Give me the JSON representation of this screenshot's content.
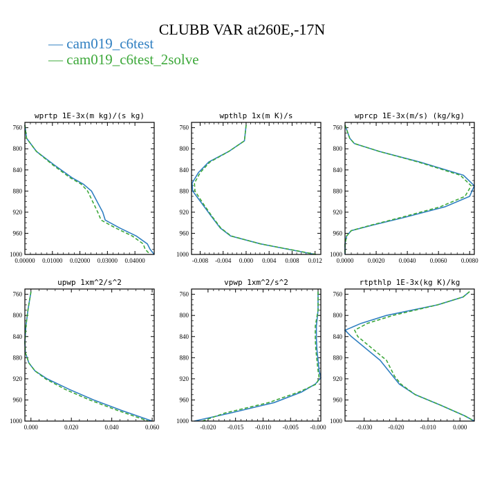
{
  "header": {
    "title": "CLUBB VAR at260E,-17N",
    "legend": [
      {
        "label": "cam019_c6test",
        "color": "#2f7fc1",
        "dash": "solid"
      },
      {
        "label": "cam019_c6test_2solve",
        "color": "#3da83a",
        "dash": "dashed"
      }
    ]
  },
  "chart_data": [
    {
      "type": "line",
      "title": "wprtp  1E-3x(m kg)/(s kg)",
      "xlim": [
        0,
        0.047
      ],
      "ylim": [
        1000,
        750
      ],
      "xticks": [
        0,
        0.01,
        0.02,
        0.03,
        0.04
      ],
      "xtick_labels": [
        "0.00000",
        "0.01000",
        "0.02000",
        "0.03000",
        "0.04000"
      ],
      "ytick_labels": [
        "760",
        "800",
        "840",
        "880",
        "920",
        "960",
        "1000"
      ],
      "y": [
        755,
        780,
        805,
        830,
        855,
        867,
        880,
        920,
        935,
        950,
        965,
        980,
        990,
        1000
      ],
      "series": [
        {
          "name": "cam019_c6test",
          "values": [
            0.0,
            0.0006,
            0.0042,
            0.0105,
            0.0172,
            0.0213,
            0.0242,
            0.0283,
            0.0292,
            0.0345,
            0.0405,
            0.0445,
            0.0455,
            0.047
          ]
        },
        {
          "name": "cam019_c6test_2solve",
          "values": [
            0.0,
            0.0006,
            0.0042,
            0.01,
            0.0165,
            0.0205,
            0.0228,
            0.0265,
            0.0277,
            0.033,
            0.039,
            0.043,
            0.0437,
            0.0455
          ]
        }
      ]
    },
    {
      "type": "line",
      "title": "wpthlp  1x(m K)/s",
      "xlim": [
        -0.0095,
        0.013
      ],
      "ylim": [
        1000,
        750
      ],
      "xticks": [
        -0.008,
        -0.004,
        0,
        0.004,
        0.008,
        0.012
      ],
      "xtick_labels": [
        "-0.008",
        "-0.004",
        "0.000",
        "0.004",
        "0.008",
        "0.012"
      ],
      "ytick_labels": [
        "760",
        "800",
        "840",
        "880",
        "920",
        "960",
        "1000"
      ],
      "y": [
        755,
        785,
        805,
        825,
        845,
        865,
        880,
        905,
        930,
        950,
        965,
        980,
        1000
      ],
      "series": [
        {
          "name": "cam019_c6test",
          "values": [
            0.0,
            -0.0003,
            -0.003,
            -0.0065,
            -0.0083,
            -0.0094,
            -0.0093,
            -0.0076,
            -0.0059,
            -0.0045,
            -0.0027,
            0.0025,
            0.012
          ]
        },
        {
          "name": "cam019_c6test_2solve",
          "values": [
            0.0,
            -0.0003,
            -0.003,
            -0.0063,
            -0.008,
            -0.009,
            -0.0089,
            -0.0074,
            -0.0058,
            -0.0044,
            -0.0026,
            0.0025,
            0.0122
          ]
        }
      ]
    },
    {
      "type": "line",
      "title": "wprcp  1E-3x(m/s) (kg/kg)",
      "xlim": [
        0,
        0.0083
      ],
      "ylim": [
        1000,
        750
      ],
      "xticks": [
        0,
        0.002,
        0.004,
        0.006,
        0.008
      ],
      "xtick_labels": [
        "0.0000",
        "0.0020",
        "0.0040",
        "0.0060",
        "0.0080"
      ],
      "ytick_labels": [
        "760",
        "800",
        "840",
        "880",
        "920",
        "960",
        "1000"
      ],
      "y": [
        755,
        780,
        790,
        805,
        825,
        850,
        870,
        890,
        910,
        930,
        945,
        955,
        965,
        980,
        1000
      ],
      "series": [
        {
          "name": "cam019_c6test",
          "values": [
            0.0,
            0.0003,
            0.0006,
            0.0022,
            0.0048,
            0.0076,
            0.0083,
            0.008,
            0.0064,
            0.0038,
            0.0017,
            0.0004,
            0.0001,
            0.0,
            0.0
          ]
        },
        {
          "name": "cam019_c6test_2solve",
          "values": [
            0.0,
            0.0003,
            0.0006,
            0.0022,
            0.0047,
            0.0074,
            0.0081,
            0.0077,
            0.0061,
            0.0036,
            0.0016,
            0.0004,
            0.0001,
            0.0,
            0.0
          ]
        }
      ]
    },
    {
      "type": "line",
      "title": "upwp  1xm^2/s^2",
      "xlim": [
        -0.003,
        0.061
      ],
      "ylim": [
        1000,
        750
      ],
      "xticks": [
        0,
        0.02,
        0.04,
        0.06
      ],
      "xtick_labels": [
        "0.000",
        "0.020",
        "0.040",
        "0.060"
      ],
      "ytick_labels": [
        "760",
        "800",
        "840",
        "880",
        "920",
        "960",
        "1000"
      ],
      "y": [
        755,
        790,
        820,
        850,
        870,
        890,
        905,
        920,
        940,
        960,
        980,
        1000
      ],
      "series": [
        {
          "name": "cam019_c6test",
          "values": [
            0.0,
            -0.0015,
            -0.0025,
            -0.003,
            -0.0028,
            -0.001,
            0.002,
            0.008,
            0.019,
            0.031,
            0.045,
            0.06
          ]
        },
        {
          "name": "cam019_c6test_2solve",
          "values": [
            0.0,
            -0.0015,
            -0.0025,
            -0.003,
            -0.0028,
            -0.001,
            0.002,
            0.0072,
            0.017,
            0.029,
            0.043,
            0.058
          ]
        }
      ]
    },
    {
      "type": "line",
      "title": "vpwp  1xm^2/s^2",
      "xlim": [
        -0.023,
        0.0005
      ],
      "ylim": [
        1000,
        750
      ],
      "xticks": [
        -0.02,
        -0.015,
        -0.01,
        -0.005,
        0
      ],
      "xtick_labels": [
        "-0.020",
        "-0.015",
        "-0.010",
        "-0.005",
        "-0.000"
      ],
      "ytick_labels": [
        "760",
        "800",
        "840",
        "880",
        "920",
        "960",
        "1000"
      ],
      "y": [
        755,
        790,
        820,
        845,
        865,
        885,
        905,
        918,
        930,
        945,
        965,
        985,
        1000
      ],
      "series": [
        {
          "name": "cam019_c6test",
          "values": [
            0.0,
            0.0,
            -0.0003,
            -0.0003,
            -0.0002,
            -0.0,
            0.0002,
            0.0005,
            -0.0005,
            -0.003,
            -0.008,
            -0.016,
            -0.0225
          ]
        },
        {
          "name": "cam019_c6test_2solve",
          "values": [
            0.0,
            0.0,
            -0.0005,
            -0.0005,
            -0.0004,
            -0.0002,
            0.0,
            0.0002,
            -0.0003,
            -0.0035,
            -0.009,
            -0.017,
            -0.021
          ]
        }
      ]
    },
    {
      "type": "line",
      "title": "rtpthlp  1E-3x(kg K)/kg",
      "xlim": [
        -0.036,
        0.0045
      ],
      "ylim": [
        1000,
        750
      ],
      "xticks": [
        -0.03,
        -0.02,
        -0.01,
        0
      ],
      "xtick_labels": [
        "-0.030",
        "-0.020",
        "-0.010",
        "0.000"
      ],
      "ytick_labels": [
        "760",
        "800",
        "840",
        "880",
        "920",
        "960",
        "1000"
      ],
      "y": [
        755,
        765,
        780,
        800,
        815,
        828,
        840,
        860,
        885,
        915,
        930,
        950,
        970,
        990,
        1000
      ],
      "series": [
        {
          "name": "cam019_c6test",
          "values": [
            0.003,
            0.001,
            -0.007,
            -0.023,
            -0.031,
            -0.036,
            -0.034,
            -0.03,
            -0.025,
            -0.021,
            -0.019,
            -0.014,
            -0.006,
            0.0015,
            0.0045
          ]
        },
        {
          "name": "cam019_c6test_2solve",
          "values": [
            0.003,
            0.001,
            -0.007,
            -0.021,
            -0.029,
            -0.033,
            -0.032,
            -0.028,
            -0.023,
            -0.0205,
            -0.0185,
            -0.014,
            -0.006,
            0.0015,
            0.0045
          ]
        }
      ]
    }
  ]
}
